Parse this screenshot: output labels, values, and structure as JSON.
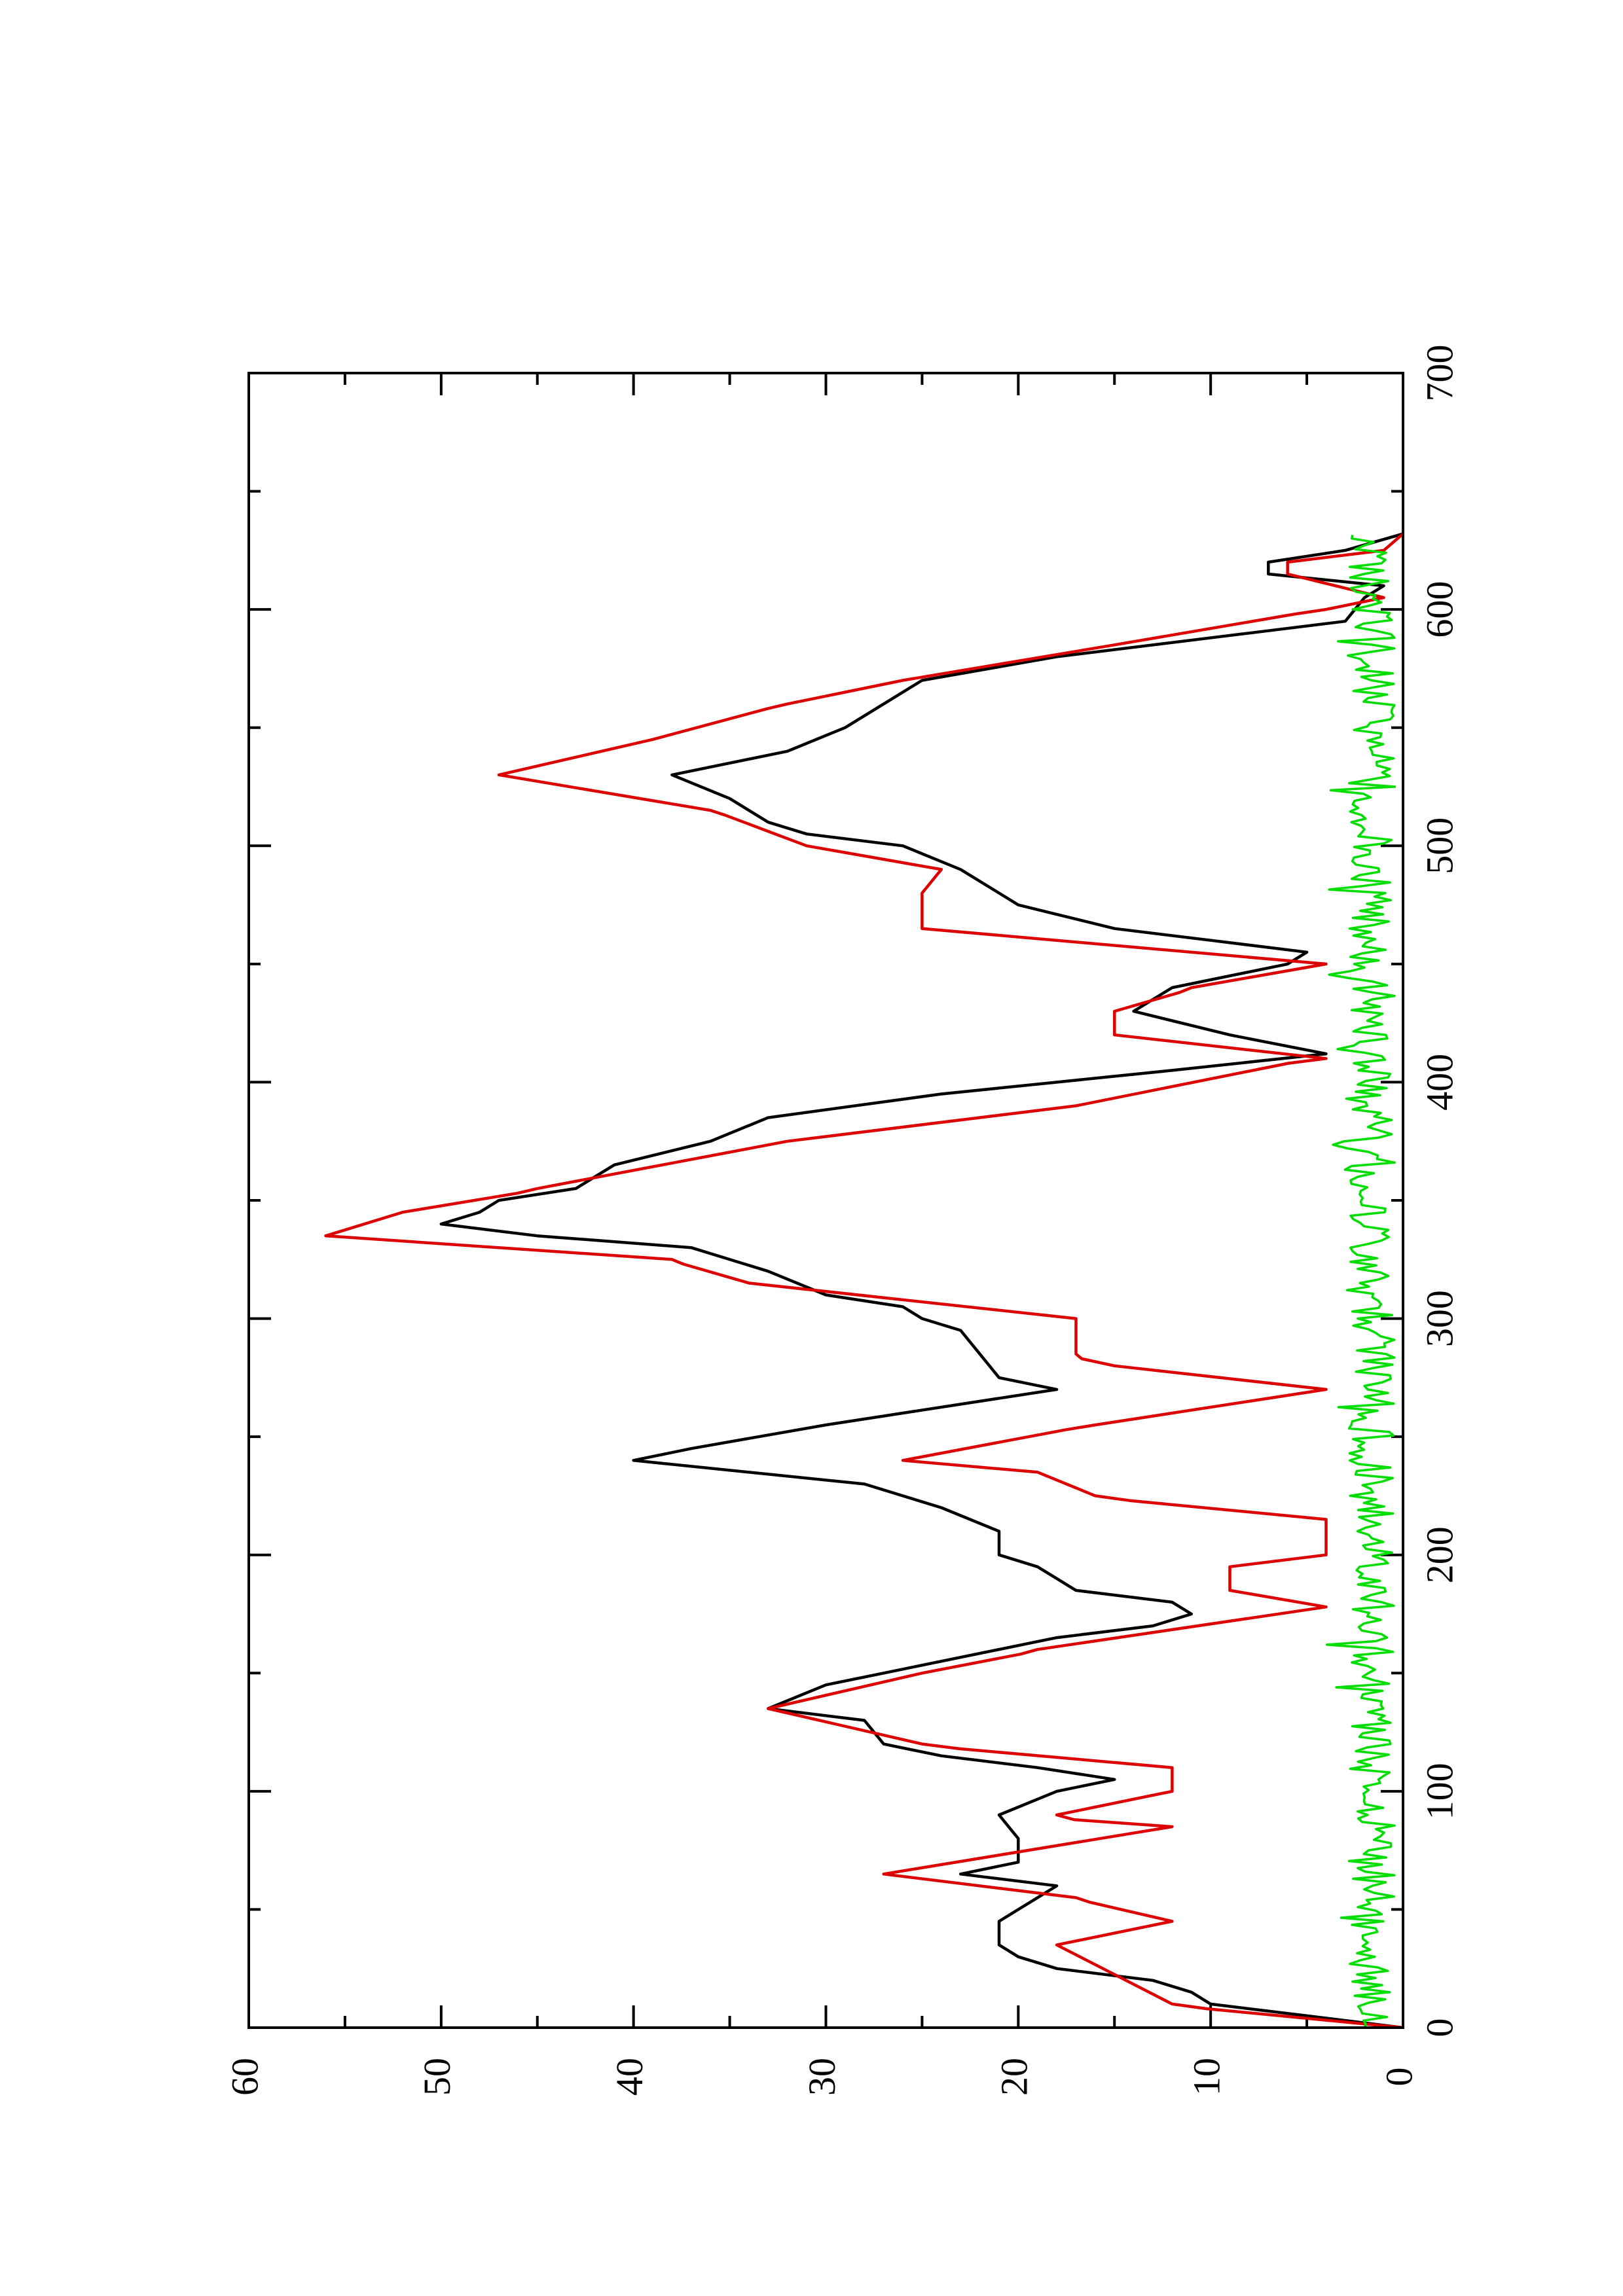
{
  "chart_data": {
    "type": "line",
    "orientation": "rotated-90-ccw",
    "title": "",
    "xlabel": "",
    "ylabel": "",
    "xlim": [
      0,
      700
    ],
    "ylim": [
      0,
      60
    ],
    "x_ticks": [
      0,
      100,
      200,
      300,
      400,
      500,
      600,
      700
    ],
    "x_minor_ticks": [
      50,
      150,
      250,
      350,
      450,
      550,
      650
    ],
    "y_ticks": [
      0,
      10,
      20,
      30,
      40,
      50,
      60
    ],
    "y_minor_ticks": [
      5,
      15,
      25,
      35,
      45,
      55
    ],
    "grid": false,
    "legend": "none",
    "series": [
      {
        "color": "#000000",
        "step": false,
        "points": [
          [
            0,
            0
          ],
          [
            5,
            5
          ],
          [
            10,
            10
          ],
          [
            15,
            11
          ],
          [
            20,
            13
          ],
          [
            25,
            18
          ],
          [
            30,
            20
          ],
          [
            35,
            21
          ],
          [
            45,
            21
          ],
          [
            55,
            19
          ],
          [
            60,
            18
          ],
          [
            65,
            23
          ],
          [
            70,
            20
          ],
          [
            80,
            20
          ],
          [
            90,
            21
          ],
          [
            100,
            18
          ],
          [
            105,
            15
          ],
          [
            110,
            19
          ],
          [
            115,
            24
          ],
          [
            120,
            27
          ],
          [
            130,
            28
          ],
          [
            135,
            33
          ],
          [
            145,
            30
          ],
          [
            150,
            27
          ],
          [
            155,
            24
          ],
          [
            165,
            18
          ],
          [
            170,
            13
          ],
          [
            175,
            11
          ],
          [
            180,
            12
          ],
          [
            185,
            17
          ],
          [
            195,
            19
          ],
          [
            200,
            21
          ],
          [
            210,
            21
          ],
          [
            220,
            24
          ],
          [
            230,
            28
          ],
          [
            240,
            40
          ],
          [
            245,
            37
          ],
          [
            255,
            30
          ],
          [
            260,
            26
          ],
          [
            270,
            18
          ],
          [
            275,
            21
          ],
          [
            285,
            22
          ],
          [
            295,
            23
          ],
          [
            300,
            25
          ],
          [
            305,
            26
          ],
          [
            310,
            30
          ],
          [
            320,
            33
          ],
          [
            330,
            37
          ],
          [
            335,
            45
          ],
          [
            340,
            50
          ],
          [
            345,
            48
          ],
          [
            350,
            47
          ],
          [
            355,
            43
          ],
          [
            365,
            41
          ],
          [
            375,
            36
          ],
          [
            385,
            33
          ],
          [
            395,
            24
          ],
          [
            405,
            12
          ],
          [
            412,
            4
          ],
          [
            420,
            9
          ],
          [
            430,
            14
          ],
          [
            440,
            12
          ],
          [
            450,
            6
          ],
          [
            455,
            5
          ],
          [
            460,
            10
          ],
          [
            465,
            15
          ],
          [
            475,
            20
          ],
          [
            480,
            21
          ],
          [
            490,
            23
          ],
          [
            500,
            26
          ],
          [
            505,
            31
          ],
          [
            510,
            33
          ],
          [
            520,
            35
          ],
          [
            530,
            38
          ],
          [
            540,
            32
          ],
          [
            550,
            29
          ],
          [
            560,
            27
          ],
          [
            570,
            25
          ],
          [
            580,
            18
          ],
          [
            590,
            8
          ],
          [
            595,
            3
          ],
          [
            605,
            2
          ],
          [
            610,
            1
          ],
          [
            615,
            7
          ],
          [
            620,
            7
          ],
          [
            625,
            3
          ],
          [
            632,
            0
          ]
        ]
      },
      {
        "color": "#dd0000",
        "step": true,
        "points": [
          [
            0,
            0
          ],
          [
            10,
            12
          ],
          [
            35,
            18
          ],
          [
            45,
            12
          ],
          [
            55,
            17
          ],
          [
            65,
            27
          ],
          [
            85,
            12
          ],
          [
            90,
            18
          ],
          [
            100,
            12
          ],
          [
            110,
            12
          ],
          [
            120,
            25
          ],
          [
            135,
            33
          ],
          [
            150,
            25
          ],
          [
            160,
            19
          ],
          [
            178,
            4
          ],
          [
            185,
            9
          ],
          [
            195,
            9
          ],
          [
            200,
            4
          ],
          [
            215,
            4
          ],
          [
            225,
            16
          ],
          [
            235,
            19
          ],
          [
            240,
            26
          ],
          [
            255,
            16
          ],
          [
            270,
            4
          ],
          [
            280,
            15
          ],
          [
            285,
            17
          ],
          [
            300,
            17
          ],
          [
            315,
            34
          ],
          [
            325,
            38
          ],
          [
            335,
            56
          ],
          [
            345,
            52
          ],
          [
            355,
            45
          ],
          [
            375,
            32
          ],
          [
            390,
            17
          ],
          [
            410,
            4
          ],
          [
            420,
            15
          ],
          [
            430,
            15
          ],
          [
            440,
            11
          ],
          [
            450,
            4
          ],
          [
            465,
            25
          ],
          [
            480,
            25
          ],
          [
            490,
            24
          ],
          [
            500,
            31
          ],
          [
            515,
            36
          ],
          [
            530,
            47
          ],
          [
            545,
            39
          ],
          [
            560,
            32
          ],
          [
            570,
            26
          ],
          [
            585,
            15
          ],
          [
            600,
            4
          ],
          [
            605,
            1
          ],
          [
            615,
            6
          ],
          [
            620,
            6
          ],
          [
            625,
            1
          ],
          [
            632,
            0
          ]
        ]
      },
      {
        "color": "#00dd00",
        "step": false,
        "noise": true,
        "points": [
          [
            0,
            1.5
          ],
          [
            700,
            1.5
          ]
        ]
      }
    ]
  }
}
